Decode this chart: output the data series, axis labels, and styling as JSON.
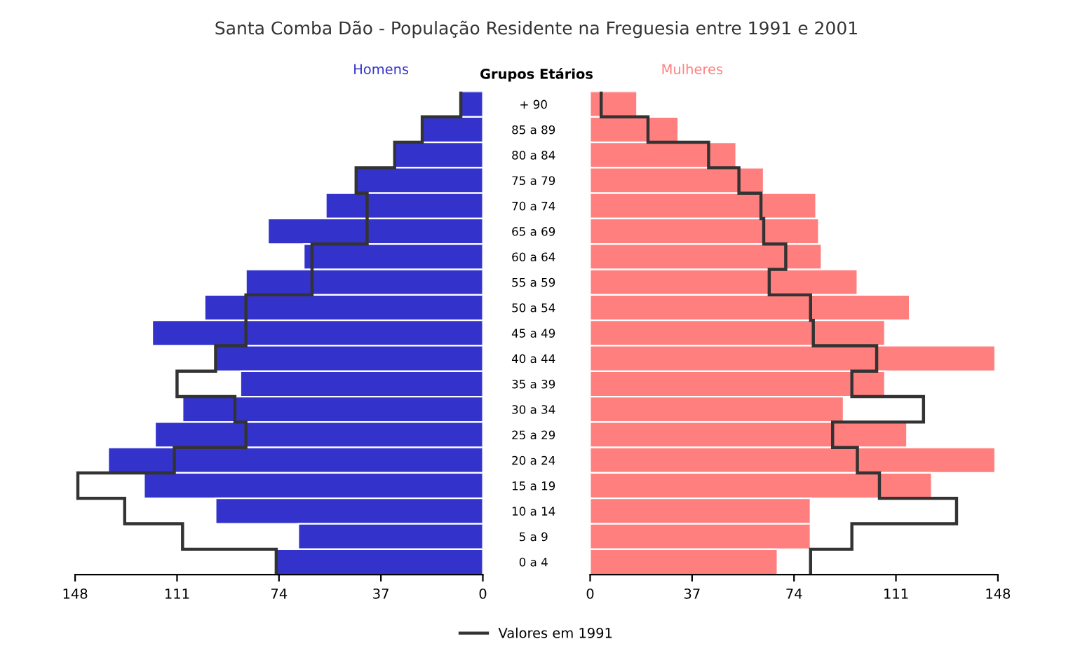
{
  "chart_data": [
    {
      "type": "bar",
      "orientation": "horizontal",
      "title": "Santa Comba Dão - População Residente na Freguesia entre 1991 e 2001",
      "ylabel": "Grupos Etários",
      "categories": [
        "+ 90",
        "85 a 89",
        "80 a 84",
        "75 a 79",
        "70 a 74",
        "65 a 69",
        "60 a 64",
        "55 a 59",
        "50 a 54",
        "45 a 49",
        "40 a 44",
        "35 a 39",
        "30 a 34",
        "25 a 29",
        "20 a 24",
        "15 a 19",
        "10 a 14",
        "5 a 9",
        "0 a 4"
      ],
      "series": [
        {
          "name": "Homens",
          "color": "#3333cc",
          "values": [
            8,
            22,
            32,
            46,
            57,
            78,
            65,
            86,
            101,
            120,
            97,
            88,
            109,
            119,
            136,
            123,
            97,
            67,
            75
          ]
        },
        {
          "type": "step",
          "name": "Valores em 1991",
          "color": "#333333",
          "values": [
            8,
            22,
            32,
            46,
            42,
            42,
            62,
            62,
            86,
            86,
            97,
            111,
            90,
            86,
            112,
            147,
            130,
            109,
            75
          ]
        }
      ],
      "xlim": [
        148,
        0
      ],
      "xticks": [
        148,
        111,
        74,
        37,
        0
      ],
      "legend": "bottom"
    },
    {
      "type": "bar",
      "orientation": "horizontal",
      "tick_labels": "x",
      "categories": [
        null,
        null,
        null,
        null,
        null,
        null,
        null,
        null,
        null,
        null,
        null,
        null,
        null,
        null,
        null,
        null,
        null,
        null,
        null
      ],
      "series": [
        {
          "name": "Mulheres",
          "color": "#ff7f7f",
          "values": [
            17,
            32,
            53,
            63,
            82,
            83,
            84,
            97,
            116,
            107,
            147,
            107,
            92,
            115,
            147,
            124,
            80,
            80,
            68
          ]
        },
        {
          "type": "step",
          "color": "#333333",
          "values": [
            4,
            21,
            43,
            54,
            62,
            63,
            71,
            65,
            80,
            81,
            104,
            95,
            121,
            88,
            97,
            105,
            133,
            95,
            80
          ]
        }
      ],
      "xlim": [
        0,
        148
      ],
      "xticks": [
        0,
        37,
        74,
        111,
        148
      ]
    }
  ]
}
